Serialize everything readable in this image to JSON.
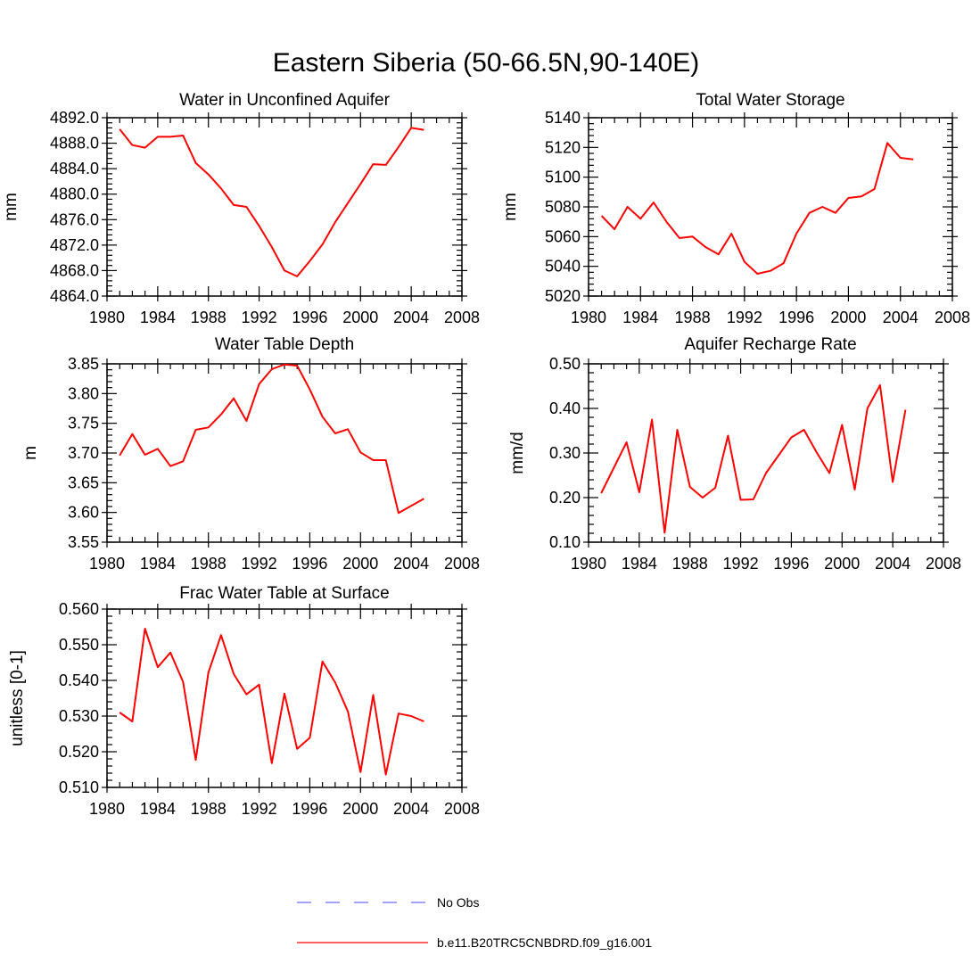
{
  "title": "Eastern Siberia (50-66.5N,90-140E)",
  "chart_data": [
    {
      "type": "line",
      "title": "Water in Unconfined Aquifer",
      "xlabel": "",
      "ylabel": "mm",
      "xlim": [
        1980,
        2008
      ],
      "ylim": [
        4864,
        4892
      ],
      "xticks": [
        1980,
        1984,
        1988,
        1992,
        1996,
        2000,
        2004,
        2008
      ],
      "yticks": [
        "4864.0",
        "4868.0",
        "4872.0",
        "4876.0",
        "4880.0",
        "4884.0",
        "4888.0",
        "4892.0"
      ],
      "series": [
        {
          "name": "b.e11.B20TRC5CNBDRD.f09_g16.001",
          "color": "#ff0000",
          "x": [
            1981,
            1982,
            1983,
            1984,
            1985,
            1986,
            1987,
            1988,
            1989,
            1990,
            1991,
            1992,
            1993,
            1994,
            1995,
            1996,
            1997,
            1998,
            1999,
            2000,
            2001,
            2002,
            2003,
            2004,
            2005
          ],
          "y": [
            4890.2,
            4887.7,
            4887.3,
            4889.0,
            4889.0,
            4889.2,
            4884.9,
            4883.1,
            4880.9,
            4878.3,
            4878.0,
            4875.0,
            4871.7,
            4868.0,
            4867.1,
            4869.5,
            4872.1,
            4875.6,
            4878.6,
            4881.6,
            4884.7,
            4884.6,
            4887.4,
            4890.4,
            4890.1
          ]
        }
      ]
    },
    {
      "type": "line",
      "title": "Total Water Storage",
      "xlabel": "",
      "ylabel": "mm",
      "xlim": [
        1980,
        2008
      ],
      "ylim": [
        5020,
        5140
      ],
      "xticks": [
        1980,
        1984,
        1988,
        1992,
        1996,
        2000,
        2004,
        2008
      ],
      "yticks": [
        "5020",
        "5040",
        "5060",
        "5080",
        "5100",
        "5120",
        "5140"
      ],
      "series": [
        {
          "name": "b.e11.B20TRC5CNBDRD.f09_g16.001",
          "color": "#ff0000",
          "x": [
            1981,
            1982,
            1983,
            1984,
            1985,
            1986,
            1987,
            1988,
            1989,
            1990,
            1991,
            1992,
            1993,
            1994,
            1995,
            1996,
            1997,
            1998,
            1999,
            2000,
            2001,
            2002,
            2003,
            2004,
            2005
          ],
          "y": [
            5074,
            5065,
            5080,
            5072,
            5083,
            5070,
            5059,
            5060,
            5053,
            5048,
            5062,
            5043,
            5035,
            5037,
            5042,
            5062,
            5076,
            5080,
            5076,
            5086,
            5087,
            5092,
            5123,
            5113,
            5112
          ]
        }
      ]
    },
    {
      "type": "line",
      "title": "Water Table Depth",
      "xlabel": "",
      "ylabel": "m",
      "xlim": [
        1980,
        2008
      ],
      "ylim": [
        3.55,
        3.85
      ],
      "xticks": [
        1980,
        1984,
        1988,
        1992,
        1996,
        2000,
        2004,
        2008
      ],
      "yticks": [
        "3.55",
        "3.60",
        "3.65",
        "3.70",
        "3.75",
        "3.80",
        "3.85"
      ],
      "series": [
        {
          "name": "b.e11.B20TRC5CNBDRD.f09_g16.001",
          "color": "#ff0000",
          "x": [
            1981,
            1982,
            1983,
            1984,
            1985,
            1986,
            1987,
            1988,
            1989,
            1990,
            1991,
            1992,
            1993,
            1994,
            1995,
            1996,
            1997,
            1998,
            1999,
            2000,
            2001,
            2002,
            2003,
            2004,
            2005
          ],
          "y": [
            3.696,
            3.732,
            3.697,
            3.707,
            3.678,
            3.686,
            3.739,
            3.743,
            3.765,
            3.792,
            3.754,
            3.816,
            3.841,
            3.849,
            3.847,
            3.807,
            3.761,
            3.733,
            3.74,
            3.701,
            3.688,
            3.688,
            3.599,
            3.611,
            3.623
          ]
        }
      ]
    },
    {
      "type": "line",
      "title": "Aquifer Recharge Rate",
      "xlabel": "",
      "ylabel": "mm/d",
      "xlim": [
        1980,
        2008
      ],
      "ylim": [
        0.1,
        0.5
      ],
      "xticks": [
        1980,
        1984,
        1988,
        1992,
        1996,
        2000,
        2004,
        2008
      ],
      "yticks": [
        "0.10",
        "0.20",
        "0.30",
        "0.40",
        "0.50"
      ],
      "series": [
        {
          "name": "b.e11.B20TRC5CNBDRD.f09_g16.001",
          "color": "#ff0000",
          "x": [
            1981,
            1982,
            1983,
            1984,
            1985,
            1986,
            1987,
            1988,
            1989,
            1990,
            1991,
            1992,
            1993,
            1994,
            1995,
            1996,
            1997,
            1998,
            1999,
            2000,
            2001,
            2002,
            2003,
            2004,
            2005
          ],
          "y": [
            0.21,
            0.267,
            0.324,
            0.212,
            0.375,
            0.121,
            0.352,
            0.224,
            0.2,
            0.222,
            0.339,
            0.195,
            0.196,
            0.255,
            0.295,
            0.335,
            0.352,
            0.301,
            0.255,
            0.363,
            0.218,
            0.4,
            0.452,
            0.235,
            0.397
          ]
        }
      ]
    },
    {
      "type": "line",
      "title": "Frac Water Table at Surface",
      "xlabel": "",
      "ylabel": "unitless [0-1]",
      "xlim": [
        1980,
        2008
      ],
      "ylim": [
        0.51,
        0.56
      ],
      "xticks": [
        1980,
        1984,
        1988,
        1992,
        1996,
        2000,
        2004,
        2008
      ],
      "yticks": [
        "0.510",
        "0.520",
        "0.530",
        "0.540",
        "0.550",
        "0.560"
      ],
      "series": [
        {
          "name": "b.e11.B20TRC5CNBDRD.f09_g16.001",
          "color": "#ff0000",
          "x": [
            1981,
            1982,
            1983,
            1984,
            1985,
            1986,
            1987,
            1988,
            1989,
            1990,
            1991,
            1992,
            1993,
            1994,
            1995,
            1996,
            1997,
            1998,
            1999,
            2000,
            2001,
            2002,
            2003,
            2004,
            2005
          ],
          "y": [
            0.531,
            0.5285,
            0.5545,
            0.5437,
            0.5478,
            0.5396,
            0.5177,
            0.5422,
            0.5527,
            0.5418,
            0.5361,
            0.5388,
            0.5168,
            0.5363,
            0.5208,
            0.5239,
            0.5453,
            0.5394,
            0.5313,
            0.5143,
            0.5359,
            0.5136,
            0.5307,
            0.53,
            0.5285
          ]
        }
      ]
    }
  ],
  "legend": {
    "entries": [
      {
        "label": "No Obs",
        "color": "#6b6bf5",
        "style": "dashed"
      },
      {
        "label": "b.e11.B20TRC5CNBDRD.f09_g16.001",
        "color": "#ff0000",
        "style": "solid"
      }
    ]
  }
}
